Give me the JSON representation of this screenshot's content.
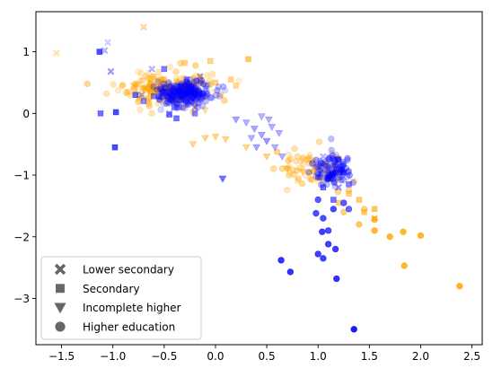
{
  "chart_data": {
    "type": "scatter",
    "title": "",
    "xlabel": "",
    "ylabel": "",
    "xlim": [
      -1.75,
      2.6
    ],
    "ylim": [
      -3.75,
      1.65
    ],
    "grid": false,
    "xticks": [
      -1.5,
      -1.0,
      -0.5,
      0.0,
      0.5,
      1.0,
      1.5,
      2.0,
      2.5
    ],
    "xtick_labels": [
      "−1.5",
      "−1.0",
      "−0.5",
      "0.0",
      "0.5",
      "1.0",
      "1.5",
      "2.0",
      "2.5"
    ],
    "yticks": [
      1,
      0,
      -1,
      -2,
      -3
    ],
    "ytick_labels": [
      "1",
      "0",
      "−1",
      "−2",
      "−3"
    ],
    "legend": {
      "placement": "lower-left",
      "entries": [
        {
          "label": "Lower secondary",
          "marker": "x"
        },
        {
          "label": "Secondary",
          "marker": "square"
        },
        {
          "label": "Incomplete higher",
          "marker": "triangle-down"
        },
        {
          "label": "Higher education",
          "marker": "circle"
        }
      ]
    },
    "colors": {
      "group_a": "#ffa500",
      "group_b": "#0000ff",
      "legend_marker": "#666666"
    },
    "series": [
      {
        "color": "#ffa500",
        "points": [
          {
            "x": -1.55,
            "y": 0.98,
            "m": "x",
            "a": 0.35
          },
          {
            "x": -0.7,
            "y": 1.4,
            "m": "x",
            "a": 0.45
          },
          {
            "x": -0.8,
            "y": 0.45,
            "m": "x",
            "a": 0.4
          },
          {
            "x": -0.6,
            "y": 0.6,
            "m": "x",
            "a": 0.35
          },
          {
            "x": -0.35,
            "y": 0.5,
            "m": "x",
            "a": 0.3
          },
          {
            "x": 1.55,
            "y": -1.7,
            "m": "x",
            "a": 0.6
          },
          {
            "x": 0.32,
            "y": 0.88,
            "m": "s",
            "a": 0.6
          },
          {
            "x": -0.3,
            "y": 0.82,
            "m": "s",
            "a": 0.5
          },
          {
            "x": -0.05,
            "y": 0.85,
            "m": "s",
            "a": 0.45
          },
          {
            "x": -0.15,
            "y": 0.6,
            "m": "s",
            "a": 0.4
          },
          {
            "x": 0.0,
            "y": 0.5,
            "m": "s",
            "a": 0.45
          },
          {
            "x": 0.15,
            "y": 0.55,
            "m": "s",
            "a": 0.45
          },
          {
            "x": -0.5,
            "y": 0.55,
            "m": "s",
            "a": 0.4
          },
          {
            "x": -0.65,
            "y": 0.4,
            "m": "s",
            "a": 0.4
          },
          {
            "x": -0.85,
            "y": 0.35,
            "m": "s",
            "a": 0.4
          },
          {
            "x": -0.45,
            "y": 0.25,
            "m": "s",
            "a": 0.35
          },
          {
            "x": 0.05,
            "y": 0.3,
            "m": "s",
            "a": 0.4
          },
          {
            "x": 0.2,
            "y": 0.45,
            "m": "s",
            "a": 0.4
          },
          {
            "x": 0.9,
            "y": -0.75,
            "m": "s",
            "a": 0.45
          },
          {
            "x": 1.0,
            "y": -1.05,
            "m": "s",
            "a": 0.45
          },
          {
            "x": 1.1,
            "y": -1.0,
            "m": "s",
            "a": 0.5
          },
          {
            "x": 1.3,
            "y": -1.3,
            "m": "s",
            "a": 0.5
          },
          {
            "x": 1.4,
            "y": -1.4,
            "m": "s",
            "a": 0.55
          },
          {
            "x": 1.55,
            "y": -1.55,
            "m": "s",
            "a": 0.6
          },
          {
            "x": 1.45,
            "y": -1.6,
            "m": "s",
            "a": 0.55
          },
          {
            "x": 1.2,
            "y": -1.45,
            "m": "s",
            "a": 0.5
          },
          {
            "x": -0.22,
            "y": -0.5,
            "m": "v",
            "a": 0.45
          },
          {
            "x": -0.1,
            "y": -0.4,
            "m": "v",
            "a": 0.45
          },
          {
            "x": 0.0,
            "y": -0.38,
            "m": "v",
            "a": 0.45
          },
          {
            "x": 0.1,
            "y": -0.42,
            "m": "v",
            "a": 0.45
          },
          {
            "x": 0.3,
            "y": -0.55,
            "m": "v",
            "a": 0.45
          },
          {
            "x": 0.5,
            "y": -0.7,
            "m": "v",
            "a": 0.5
          },
          {
            "x": 0.7,
            "y": -0.9,
            "m": "v",
            "a": 0.5
          },
          {
            "x": 0.85,
            "y": -0.95,
            "m": "v",
            "a": 0.45
          },
          {
            "x": -0.1,
            "y": 0.05,
            "m": "v",
            "a": 0.35
          },
          {
            "x": -0.3,
            "y": 0.1,
            "m": "v",
            "a": 0.35
          },
          {
            "x": 1.55,
            "y": -1.72,
            "m": "o",
            "a": 0.8
          },
          {
            "x": 1.55,
            "y": -1.9,
            "m": "o",
            "a": 0.8
          },
          {
            "x": 1.7,
            "y": -2.0,
            "m": "o",
            "a": 0.8
          },
          {
            "x": 1.83,
            "y": -1.92,
            "m": "o",
            "a": 0.8
          },
          {
            "x": 2.0,
            "y": -1.98,
            "m": "o",
            "a": 0.8
          },
          {
            "x": 1.84,
            "y": -2.47,
            "m": "o",
            "a": 0.8
          },
          {
            "x": 2.38,
            "y": -2.8,
            "m": "o",
            "a": 0.85
          },
          {
            "x": 1.4,
            "y": -1.8,
            "m": "o",
            "a": 0.6
          },
          {
            "x": 1.25,
            "y": -1.6,
            "m": "o",
            "a": 0.5
          },
          {
            "x": 1.45,
            "y": -1.55,
            "m": "o",
            "a": 0.5
          },
          {
            "x": 0.6,
            "y": -0.62,
            "m": "o",
            "a": 0.45
          },
          {
            "x": 0.8,
            "y": -0.7,
            "m": "o",
            "a": 0.35
          },
          {
            "x": 1.3,
            "y": -1.25,
            "m": "o",
            "a": 0.4
          },
          {
            "x": 1.35,
            "y": -1.1,
            "m": "o",
            "a": 0.3
          }
        ],
        "clusters": [
          {
            "cx": -0.48,
            "cy": 0.42,
            "sx": 0.22,
            "sy": 0.14,
            "n": 170,
            "m": "o",
            "a": 0.3
          },
          {
            "cx": 0.95,
            "cy": -0.9,
            "sx": 0.17,
            "sy": 0.15,
            "n": 55,
            "m": "o",
            "a": 0.3
          }
        ]
      },
      {
        "color": "#0000ff",
        "points": [
          {
            "x": -1.05,
            "y": 1.15,
            "m": "x",
            "a": 0.2
          },
          {
            "x": -1.08,
            "y": 1.02,
            "m": "x",
            "a": 0.3
          },
          {
            "x": -1.02,
            "y": 0.68,
            "m": "x",
            "a": 0.4
          },
          {
            "x": -0.62,
            "y": 0.72,
            "m": "x",
            "a": 0.3
          },
          {
            "x": -0.72,
            "y": 0.3,
            "m": "x",
            "a": 0.3
          },
          {
            "x": -0.4,
            "y": 0.3,
            "m": "x",
            "a": 0.35
          },
          {
            "x": -0.25,
            "y": 0.25,
            "m": "x",
            "a": 0.35
          },
          {
            "x": -0.15,
            "y": 0.6,
            "m": "x",
            "a": 0.3
          },
          {
            "x": -0.45,
            "y": 0.0,
            "m": "x",
            "a": 0.3
          },
          {
            "x": -0.2,
            "y": 0.1,
            "m": "x",
            "a": 0.35
          },
          {
            "x": 1.05,
            "y": -0.7,
            "m": "x",
            "a": 0.3
          },
          {
            "x": 1.2,
            "y": -1.2,
            "m": "x",
            "a": 0.4
          },
          {
            "x": -1.13,
            "y": 1.0,
            "m": "s",
            "a": 0.7
          },
          {
            "x": -1.12,
            "y": 0.0,
            "m": "s",
            "a": 0.55
          },
          {
            "x": -0.97,
            "y": 0.02,
            "m": "s",
            "a": 0.7
          },
          {
            "x": -0.98,
            "y": -0.55,
            "m": "s",
            "a": 0.7
          },
          {
            "x": -0.78,
            "y": 0.3,
            "m": "s",
            "a": 0.55
          },
          {
            "x": -0.5,
            "y": 0.72,
            "m": "s",
            "a": 0.5
          },
          {
            "x": -0.4,
            "y": 0.1,
            "m": "s",
            "a": 0.5
          },
          {
            "x": -0.35,
            "y": 0.1,
            "m": "s",
            "a": 0.4
          },
          {
            "x": -0.45,
            "y": -0.02,
            "m": "s",
            "a": 0.5
          },
          {
            "x": -0.38,
            "y": -0.08,
            "m": "s",
            "a": 0.55
          },
          {
            "x": -0.2,
            "y": 0.0,
            "m": "s",
            "a": 0.45
          },
          {
            "x": -0.28,
            "y": 0.55,
            "m": "s",
            "a": 0.45
          },
          {
            "x": -0.6,
            "y": 0.28,
            "m": "s",
            "a": 0.45
          },
          {
            "x": -0.7,
            "y": 0.2,
            "m": "s",
            "a": 0.45
          },
          {
            "x": 1.05,
            "y": -1.2,
            "m": "s",
            "a": 0.55
          },
          {
            "x": 1.15,
            "y": -1.4,
            "m": "s",
            "a": 0.55
          },
          {
            "x": 1.25,
            "y": -0.95,
            "m": "s",
            "a": 0.5
          },
          {
            "x": 1.3,
            "y": -1.15,
            "m": "s",
            "a": 0.5
          },
          {
            "x": 1.1,
            "y": -1.05,
            "m": "s",
            "a": 0.5
          },
          {
            "x": 1.2,
            "y": -0.75,
            "m": "s",
            "a": 0.45
          },
          {
            "x": 0.2,
            "y": -0.1,
            "m": "v",
            "a": 0.35
          },
          {
            "x": 0.3,
            "y": -0.15,
            "m": "v",
            "a": 0.3
          },
          {
            "x": 0.38,
            "y": -0.25,
            "m": "v",
            "a": 0.35
          },
          {
            "x": 0.45,
            "y": -0.05,
            "m": "v",
            "a": 0.3
          },
          {
            "x": 0.52,
            "y": -0.1,
            "m": "v",
            "a": 0.3
          },
          {
            "x": 0.55,
            "y": -0.22,
            "m": "v",
            "a": 0.3
          },
          {
            "x": 0.45,
            "y": -0.35,
            "m": "v",
            "a": 0.35
          },
          {
            "x": 0.5,
            "y": -0.45,
            "m": "v",
            "a": 0.4
          },
          {
            "x": 0.4,
            "y": -0.55,
            "m": "v",
            "a": 0.35
          },
          {
            "x": 0.58,
            "y": -0.55,
            "m": "v",
            "a": 0.3
          },
          {
            "x": 0.62,
            "y": -0.32,
            "m": "v",
            "a": 0.3
          },
          {
            "x": 0.35,
            "y": -0.4,
            "m": "v",
            "a": 0.3
          },
          {
            "x": 0.07,
            "y": -1.06,
            "m": "v",
            "a": 0.55
          },
          {
            "x": 0.65,
            "y": -0.7,
            "m": "v",
            "a": 0.3
          },
          {
            "x": 1.35,
            "y": -3.5,
            "m": "o",
            "a": 0.9
          },
          {
            "x": 0.64,
            "y": -2.38,
            "m": "o",
            "a": 0.8
          },
          {
            "x": 0.73,
            "y": -2.57,
            "m": "o",
            "a": 0.8
          },
          {
            "x": 1.18,
            "y": -2.68,
            "m": "o",
            "a": 0.8
          },
          {
            "x": 1.0,
            "y": -2.28,
            "m": "o",
            "a": 0.75
          },
          {
            "x": 1.05,
            "y": -2.35,
            "m": "o",
            "a": 0.75
          },
          {
            "x": 1.1,
            "y": -2.12,
            "m": "o",
            "a": 0.75
          },
          {
            "x": 1.17,
            "y": -2.2,
            "m": "o",
            "a": 0.75
          },
          {
            "x": 1.04,
            "y": -1.92,
            "m": "o",
            "a": 0.75
          },
          {
            "x": 1.1,
            "y": -1.9,
            "m": "o",
            "a": 0.7
          },
          {
            "x": 0.98,
            "y": -1.62,
            "m": "o",
            "a": 0.7
          },
          {
            "x": 1.05,
            "y": -1.7,
            "m": "o",
            "a": 0.7
          },
          {
            "x": 1.15,
            "y": -1.55,
            "m": "o",
            "a": 0.7
          },
          {
            "x": 1.25,
            "y": -1.45,
            "m": "o",
            "a": 0.65
          },
          {
            "x": 1.0,
            "y": -1.4,
            "m": "o",
            "a": 0.65
          },
          {
            "x": 1.3,
            "y": -1.55,
            "m": "o",
            "a": 0.6
          }
        ],
        "clusters": [
          {
            "cx": -0.3,
            "cy": 0.33,
            "sx": 0.13,
            "sy": 0.1,
            "n": 260,
            "m": "o",
            "a": 0.22
          },
          {
            "cx": 1.15,
            "cy": -0.92,
            "sx": 0.09,
            "sy": 0.13,
            "n": 110,
            "m": "o",
            "a": 0.25
          }
        ]
      }
    ]
  }
}
